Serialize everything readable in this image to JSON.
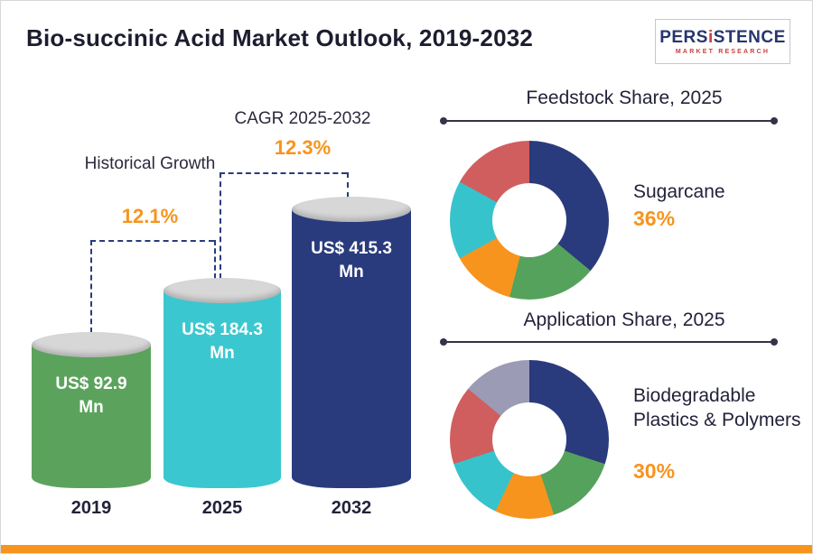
{
  "page": {
    "title": "Bio-succinic Acid Market Outlook, 2019-2032",
    "accent_color": "#f7941e",
    "navy_color": "#2a3b7d"
  },
  "logo": {
    "name_pre": "PERS",
    "name_i": "i",
    "name_post": "STENCE",
    "tagline": "MARKET RESEARCH"
  },
  "chart_data": [
    {
      "type": "bar",
      "title": "Bio-succinic Acid Market Outlook, 2019-2032",
      "categories": [
        "2019",
        "2025",
        "2032"
      ],
      "values": [
        92.9,
        184.3,
        415.3
      ],
      "unit": "US$ Mn",
      "bar_labels": [
        "US$ 92.9 Mn",
        "US$ 184.3 Mn",
        "US$ 415.3 Mn"
      ],
      "bar_colors": [
        "#5ba35c",
        "#3bc7cf",
        "#2a3b7d"
      ],
      "annotations": [
        {
          "label": "Historical Growth",
          "value": "12.1%",
          "from": "2019",
          "to": "2025"
        },
        {
          "label": "CAGR 2025-2032",
          "value": "12.3%",
          "from": "2025",
          "to": "2032"
        }
      ]
    },
    {
      "type": "pie",
      "title": "Feedstock Share, 2025",
      "highlight": {
        "label": "Sugarcane",
        "value_text": "36%"
      },
      "segments": [
        {
          "name": "Sugarcane",
          "value": 36,
          "color": "#2a3b7d"
        },
        {
          "value": 18,
          "color": "#55a25d"
        },
        {
          "value": 13,
          "color": "#f7941e"
        },
        {
          "value": 16,
          "color": "#37c3cc"
        },
        {
          "value": 17,
          "color": "#d05e5e"
        }
      ]
    },
    {
      "type": "pie",
      "title": "Application Share, 2025",
      "highlight": {
        "label": "Biodegradable Plastics & Polymers",
        "value_text": "30%"
      },
      "segments": [
        {
          "name": "Biodegradable Plastics & Polymers",
          "value": 30,
          "color": "#2a3b7d"
        },
        {
          "value": 15,
          "color": "#55a25d"
        },
        {
          "value": 12,
          "color": "#f7941e"
        },
        {
          "value": 13,
          "color": "#37c3cc"
        },
        {
          "value": 16,
          "color": "#d05e5e"
        },
        {
          "value": 14,
          "color": "#9b9bb5"
        }
      ]
    }
  ]
}
